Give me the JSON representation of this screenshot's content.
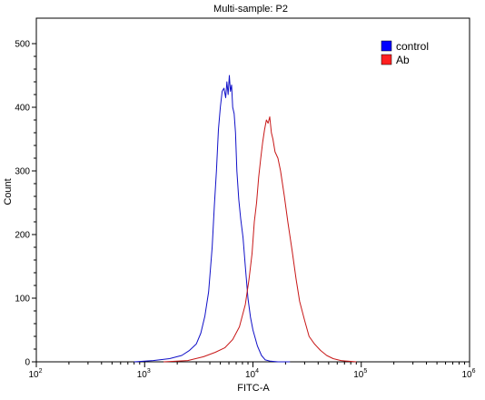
{
  "chart_data": {
    "type": "line",
    "title": "Multi-sample: P2",
    "xlabel": "FITC-A",
    "ylabel": "Count",
    "x_scale": "log",
    "xlim": [
      100,
      1000000
    ],
    "ylim": [
      0,
      540
    ],
    "grid": false,
    "legend_position": "top-right",
    "x_ticks": [
      {
        "value": 100,
        "base": "10",
        "exp": "2"
      },
      {
        "value": 1000,
        "base": "10",
        "exp": "3"
      },
      {
        "value": 10000,
        "base": "10",
        "exp": "4"
      },
      {
        "value": 100000,
        "base": "10",
        "exp": "5"
      },
      {
        "value": 1000000,
        "base": "10",
        "exp": "6"
      }
    ],
    "y_ticks": [
      0,
      100,
      200,
      300,
      400,
      500
    ],
    "series": [
      {
        "name": "control",
        "color": "#1010c8",
        "swatch": "#0000ff",
        "x": [
          800,
          1200,
          1700,
          2200,
          2600,
          3000,
          3300,
          3600,
          3900,
          4200,
          4400,
          4600,
          4800,
          5000,
          5200,
          5400,
          5600,
          5750,
          5900,
          6050,
          6200,
          6350,
          6500,
          6700,
          6900,
          7100,
          7400,
          7700,
          8100,
          8500,
          9000,
          9500,
          10000,
          11000,
          12000,
          13000,
          14500,
          17000,
          22000
        ],
        "y": [
          0,
          2,
          5,
          10,
          18,
          28,
          45,
          72,
          110,
          180,
          245,
          300,
          365,
          400,
          425,
          430,
          415,
          440,
          420,
          450,
          425,
          435,
          400,
          390,
          360,
          300,
          255,
          225,
          195,
          150,
          100,
          70,
          50,
          25,
          10,
          3,
          1,
          0,
          0
        ]
      },
      {
        "name": "Ab",
        "color": "#c81818",
        "swatch": "#ff2020",
        "x": [
          1500,
          2500,
          3500,
          4500,
          5500,
          6500,
          7500,
          8500,
          9200,
          9800,
          10300,
          10800,
          11300,
          11800,
          12300,
          12800,
          13300,
          13800,
          14300,
          14800,
          15300,
          16000,
          17000,
          18000,
          19500,
          21000,
          23000,
          25000,
          27000,
          30000,
          33000,
          37000,
          42000,
          48000,
          55000,
          65000,
          75000,
          90000
        ],
        "y": [
          0,
          2,
          8,
          15,
          22,
          35,
          55,
          90,
          130,
          170,
          220,
          250,
          290,
          320,
          345,
          365,
          380,
          375,
          385,
          360,
          350,
          330,
          320,
          300,
          260,
          220,
          175,
          130,
          95,
          65,
          40,
          28,
          18,
          10,
          5,
          2,
          1,
          0
        ]
      }
    ]
  }
}
